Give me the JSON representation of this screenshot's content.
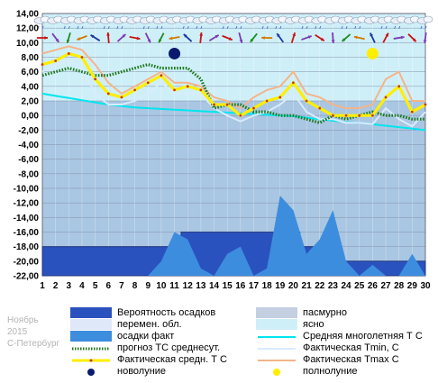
{
  "chart_data": {
    "type": "line",
    "title": "",
    "xlabel": "",
    "ylabel": "",
    "x": [
      1,
      2,
      3,
      4,
      5,
      6,
      7,
      8,
      9,
      10,
      11,
      12,
      13,
      14,
      15,
      16,
      17,
      18,
      19,
      20,
      21,
      22,
      23,
      24,
      25,
      26,
      27,
      28,
      29,
      30
    ],
    "xlim": [
      1,
      30
    ],
    "ylim": [
      -22,
      14
    ],
    "yticks": [
      "14,00",
      "12,00",
      "10,00",
      "8,00",
      "6,00",
      "4,00",
      "2,00",
      "0,00",
      "-2,00",
      "-4,00",
      "-6,00",
      "-8,00",
      "-10,00",
      "-12,00",
      "-14,00",
      "-16,00",
      "-18,00",
      "-20,00",
      "-22,00"
    ],
    "xticks": [
      "1",
      "2",
      "3",
      "4",
      "5",
      "6",
      "7",
      "8",
      "9",
      "10",
      "11",
      "12",
      "13",
      "14",
      "15",
      "16",
      "17",
      "18",
      "19",
      "20",
      "21",
      "22",
      "23",
      "24",
      "25",
      "26",
      "27",
      "28",
      "29",
      "30"
    ],
    "grid": true,
    "series": [
      {
        "name": "Вероятность осадков",
        "kind": "step-area",
        "color": "#2a52be",
        "values": [
          -18,
          -18,
          -18,
          -18,
          -18,
          -18,
          -18,
          -18,
          -18,
          -18,
          -18,
          -16,
          -16,
          -16,
          -16,
          -16,
          -16,
          -16,
          -16,
          -16,
          -18,
          -18,
          -20,
          -20,
          -20,
          -20,
          -20,
          -20,
          -20,
          -20
        ]
      },
      {
        "name": "осадки факт",
        "kind": "area",
        "color": "#3c8dde",
        "values": [
          -22,
          -22,
          -22,
          -22,
          -22,
          -22,
          -22,
          -22,
          -22,
          -20,
          -16,
          -17,
          -21,
          -22,
          -19,
          -18,
          -22,
          -21,
          -11,
          -13,
          -19,
          -17,
          -13,
          -20,
          -22,
          -20.5,
          -22,
          -22,
          -19,
          -22
        ]
      },
      {
        "name": "Средняя многолетняя Т С",
        "kind": "line",
        "color": "#00e5ee",
        "values": [
          3,
          2.7,
          2.4,
          2.1,
          1.8,
          1.5,
          1.3,
          1.1,
          1.0,
          0.9,
          0.8,
          0.7,
          0.6,
          0.5,
          0.4,
          0.3,
          0.2,
          0.1,
          0,
          -0.1,
          -0.3,
          -0.5,
          -0.7,
          -0.9,
          -1.0,
          -1.2,
          -1.4,
          -1.6,
          -1.8,
          -2.0
        ]
      },
      {
        "name": "Фактическая Tmin, C",
        "kind": "line",
        "color": "#d8ecff",
        "values": [
          6,
          7,
          7.5,
          6.5,
          3,
          1.5,
          1.5,
          2,
          3,
          4.5,
          3,
          3,
          3,
          1,
          0,
          -0.8,
          0,
          0.5,
          1.5,
          3,
          0.5,
          -0.5,
          -0.5,
          -1,
          -1,
          -1.2,
          1,
          -0.5,
          -1.5,
          0.5
        ]
      },
      {
        "name": "Фактическая Tmax C",
        "kind": "line",
        "color": "#f4b48a",
        "values": [
          8.5,
          9,
          9.5,
          9,
          7,
          4.5,
          3,
          4,
          5,
          6,
          4.5,
          4.5,
          4,
          2.5,
          2,
          1,
          2.5,
          3.5,
          4,
          6,
          3,
          2.5,
          1.5,
          1,
          1,
          1.5,
          5,
          6,
          2,
          2
        ]
      },
      {
        "name": "прогноз ТС среднесут.",
        "kind": "dotted",
        "color": "#1e7a1e",
        "values": [
          5.5,
          6,
          6.5,
          6,
          5.5,
          5.5,
          6,
          6.5,
          7,
          6.5,
          6.5,
          6.5,
          5,
          1,
          1.5,
          1.5,
          0.5,
          0.5,
          0,
          0,
          -0.5,
          -1,
          0,
          -0.5,
          0,
          0.5,
          0,
          0,
          -0.5,
          -0.5
        ]
      },
      {
        "name": "Фактическая средн. Т С",
        "kind": "line-markers",
        "color": "#ffee00",
        "values": [
          7,
          7.5,
          8.5,
          8,
          5,
          3,
          2.5,
          3.5,
          4.5,
          5.5,
          3.5,
          4,
          3.5,
          1.5,
          1.5,
          0,
          1,
          2,
          2.5,
          4.5,
          2,
          1,
          0,
          0,
          0,
          0,
          2.5,
          4,
          0.5,
          1.5
        ]
      }
    ],
    "markers": [
      {
        "name": "новолуние",
        "day": 11,
        "y": 8.5,
        "color": "#0a1a6e"
      },
      {
        "name": "полнолуние",
        "day": 26,
        "y": 8.5,
        "color": "#ffee00"
      }
    ]
  },
  "info": {
    "month": "Ноябрь",
    "year": "2015",
    "city": "С-Петербург"
  },
  "legend": {
    "left": [
      {
        "label": "Вероятность осадков",
        "swatch": "fill",
        "color": "#2a52be"
      },
      {
        "label": "перемен. обл.",
        "swatch": "fill",
        "color": "#dfe8f8"
      },
      {
        "label": "осадки факт",
        "swatch": "fill",
        "color": "#3c8dde"
      },
      {
        "label": "прогноз ТС среднесут.",
        "swatch": "dotted",
        "color": "#1e7a1e"
      },
      {
        "label": "Фактическая средн. Т С",
        "swatch": "line-marker",
        "color": "#ffee00"
      },
      {
        "label": "новолуние",
        "swatch": "dot",
        "color": "#0a1a6e"
      }
    ],
    "right": [
      {
        "label": "пасмурно",
        "swatch": "fill",
        "color": "#c4cfe2"
      },
      {
        "label": "ясно",
        "swatch": "fill",
        "color": "#cfeff8"
      },
      {
        "label": "Средняя многолетняя Т С",
        "swatch": "line",
        "color": "#00e5ee"
      },
      {
        "label": "Фактическая Tmin, C",
        "swatch": "line",
        "color": "#d8ecff"
      },
      {
        "label": "Фактическая Tmax C",
        "swatch": "line",
        "color": "#f4b48a"
      },
      {
        "label": "полнолуние",
        "swatch": "dot",
        "color": "#ffee00"
      }
    ]
  }
}
